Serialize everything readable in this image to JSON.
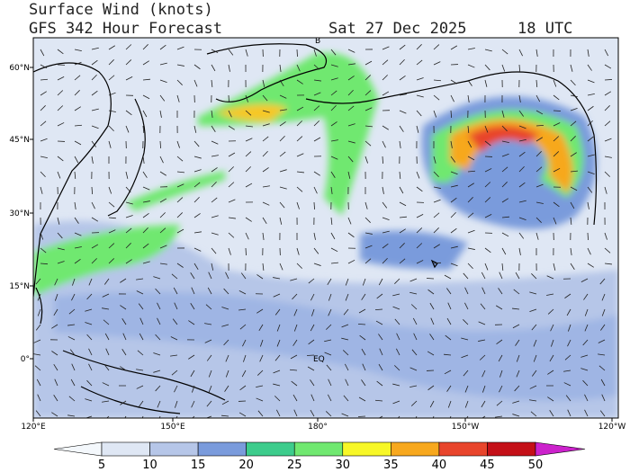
{
  "header": {
    "title": "Surface Wind (knots)",
    "subtitle": "GFS 342 Hour Forecast",
    "date": "Sat 27 Dec 2025",
    "time": "18 UTC"
  },
  "map": {
    "lat_labels": [
      "60°N",
      "45°N",
      "30°N",
      "15°N",
      "0°"
    ],
    "lon_labels": [
      "120°E",
      "150°E",
      "180°",
      "150°W",
      "120°W"
    ],
    "equator_label": "EQ",
    "pole_label": "B"
  },
  "colorbar": {
    "values": [
      5,
      10,
      15,
      20,
      25,
      30,
      35,
      40,
      45,
      50
    ],
    "colors": [
      "#f4f8fc",
      "#dfe7f4",
      "#b6c6e8",
      "#7a9bdc",
      "#3dcc8c",
      "#70e870",
      "#f7f727",
      "#f7a81e",
      "#e8452c",
      "#c41018",
      "#cc22cc"
    ]
  }
}
